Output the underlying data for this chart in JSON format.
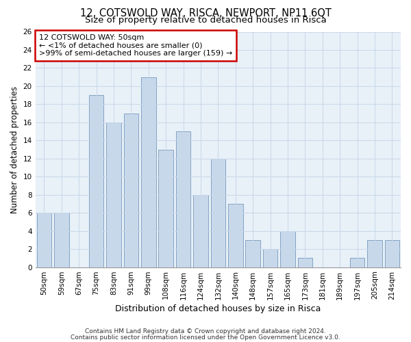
{
  "title": "12, COTSWOLD WAY, RISCA, NEWPORT, NP11 6QT",
  "subtitle": "Size of property relative to detached houses in Risca",
  "xlabel": "Distribution of detached houses by size in Risca",
  "ylabel": "Number of detached properties",
  "categories": [
    "50sqm",
    "59sqm",
    "67sqm",
    "75sqm",
    "83sqm",
    "91sqm",
    "99sqm",
    "108sqm",
    "116sqm",
    "124sqm",
    "132sqm",
    "140sqm",
    "148sqm",
    "157sqm",
    "165sqm",
    "173sqm",
    "181sqm",
    "189sqm",
    "197sqm",
    "205sqm",
    "214sqm"
  ],
  "values": [
    6,
    6,
    0,
    19,
    16,
    17,
    21,
    13,
    15,
    8,
    12,
    7,
    3,
    2,
    4,
    1,
    0,
    0,
    1,
    3,
    3
  ],
  "bar_color": "#c8d8eb",
  "bar_edge_color": "#7799bb",
  "annotation_title": "12 COTSWOLD WAY: 50sqm",
  "annotation_line1": "← <1% of detached houses are smaller (0)",
  "annotation_line2": ">99% of semi-detached houses are larger (159) →",
  "annotation_box_color": "#ffffff",
  "annotation_box_edge_color": "#cc0000",
  "grid_color": "#c8d8e8",
  "background_color": "#e8f0f8",
  "fig_background_color": "#ffffff",
  "ylim": [
    0,
    26
  ],
  "yticks": [
    0,
    2,
    4,
    6,
    8,
    10,
    12,
    14,
    16,
    18,
    20,
    22,
    24,
    26
  ],
  "footer_line1": "Contains HM Land Registry data © Crown copyright and database right 2024.",
  "footer_line2": "Contains public sector information licensed under the Open Government Licence v3.0.",
  "title_fontsize": 10.5,
  "subtitle_fontsize": 9.5,
  "xlabel_fontsize": 9,
  "ylabel_fontsize": 8.5,
  "tick_fontsize": 7.5,
  "annotation_fontsize": 8,
  "footer_fontsize": 6.5
}
